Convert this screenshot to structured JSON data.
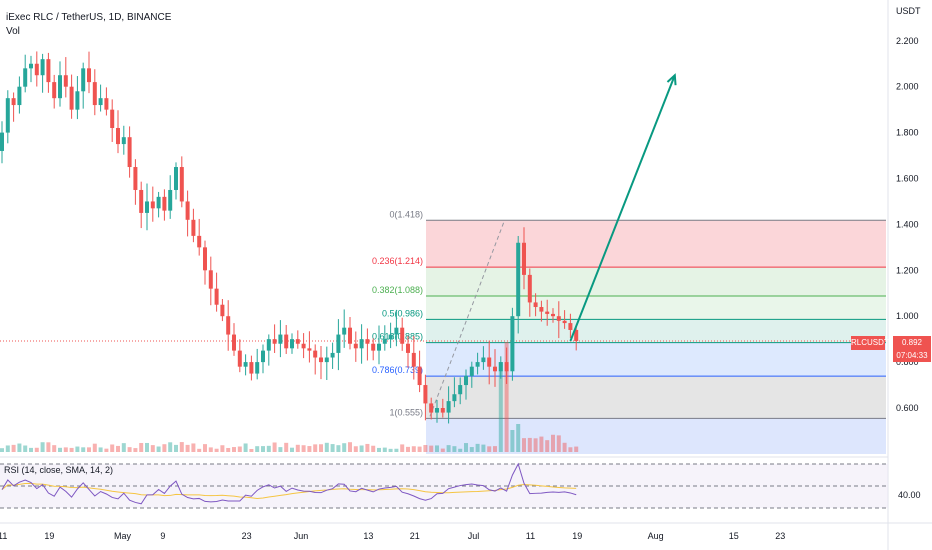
{
  "header": {
    "symbol_line": "iExec RLC / TetherUS, 1D, BINANCE",
    "vol_label": "Vol"
  },
  "axis": {
    "unit": "USDT",
    "price_ticks": [
      {
        "v": 2.2,
        "label": "2.200"
      },
      {
        "v": 2.0,
        "label": "2.000"
      },
      {
        "v": 1.8,
        "label": "1.800"
      },
      {
        "v": 1.6,
        "label": "1.600"
      },
      {
        "v": 1.4,
        "label": "1.400"
      },
      {
        "v": 1.2,
        "label": "1.200"
      },
      {
        "v": 1.0,
        "label": "1.000"
      },
      {
        "v": 0.8,
        "label": "0.800"
      },
      {
        "v": 0.6,
        "label": "0.600"
      }
    ],
    "date_ticks": [
      {
        "i": 0,
        "label": "11"
      },
      {
        "i": 8,
        "label": "19"
      },
      {
        "i": 20,
        "label": "May"
      },
      {
        "i": 28,
        "label": "9"
      },
      {
        "i": 42,
        "label": "23"
      },
      {
        "i": 51,
        "label": "Jun"
      },
      {
        "i": 63,
        "label": "13"
      },
      {
        "i": 71,
        "label": "21"
      },
      {
        "i": 81,
        "label": "Jul"
      },
      {
        "i": 91,
        "label": "11"
      },
      {
        "i": 99,
        "label": "19"
      },
      {
        "i": 112,
        "label": "Aug"
      },
      {
        "i": 126,
        "label": "15"
      },
      {
        "i": 134,
        "label": "23"
      }
    ]
  },
  "price_tag": {
    "symbol": "RLCUSDT",
    "price": "0.892",
    "countdown": "07:04:33"
  },
  "rsi": {
    "label": "RSI (14, close, SMA, 14, 2)",
    "tick_label": "40.00"
  },
  "fib_levels": [
    {
      "ratio": "0",
      "price": 1.418,
      "label": "0(1.418)",
      "color": "#787b86"
    },
    {
      "ratio": "0.236",
      "price": 1.214,
      "label": "0.236(1.214)",
      "color": "#f23645"
    },
    {
      "ratio": "0.382",
      "price": 1.088,
      "label": "0.382(1.088)",
      "color": "#4caf50"
    },
    {
      "ratio": "0.5",
      "price": 0.986,
      "label": "0.5(0.986)",
      "color": "#089981"
    },
    {
      "ratio": "0.618",
      "price": 0.885,
      "label": "0.618(0.885)",
      "color": "#089981"
    },
    {
      "ratio": "0.786",
      "price": 0.739,
      "label": "0.786(0.739)",
      "color": "#2962ff"
    },
    {
      "ratio": "1",
      "price": 0.555,
      "label": "1(0.555)",
      "color": "#787b86"
    }
  ],
  "chart_data": {
    "type": "candlestick",
    "symbol": "RLCUSDT",
    "current_price": 0.892,
    "ylim": [
      0.47,
      2.35
    ],
    "colors": {
      "up": "#26a69a",
      "down": "#ef5350",
      "arrow": "#089981",
      "rsi": "#7e57c2",
      "rsi_ma": "#f5c542"
    },
    "closes": [
      1.8,
      1.95,
      1.92,
      2.0,
      2.08,
      2.1,
      2.05,
      2.12,
      2.02,
      1.95,
      2.05,
      2.0,
      1.9,
      1.98,
      2.08,
      2.02,
      1.92,
      1.95,
      1.9,
      1.82,
      1.75,
      1.78,
      1.65,
      1.55,
      1.45,
      1.5,
      1.47,
      1.52,
      1.46,
      1.55,
      1.65,
      1.5,
      1.42,
      1.35,
      1.3,
      1.2,
      1.12,
      1.05,
      1.0,
      0.92,
      0.85,
      0.78,
      0.8,
      0.75,
      0.8,
      0.85,
      0.9,
      0.88,
      0.92,
      0.86,
      0.9,
      0.88,
      0.86,
      0.85,
      0.82,
      0.8,
      0.82,
      0.84,
      0.92,
      0.95,
      0.88,
      0.86,
      0.9,
      0.88,
      0.85,
      0.88,
      0.9,
      0.92,
      0.95,
      0.88,
      0.84,
      0.78,
      0.7,
      0.62,
      0.58,
      0.6,
      0.58,
      0.63,
      0.66,
      0.7,
      0.74,
      0.78,
      0.8,
      0.82,
      0.78,
      0.76,
      0.8,
      0.76,
      1.0,
      1.32,
      1.18,
      1.06,
      1.04,
      1.02,
      1.01,
      1.0,
      0.98,
      0.97,
      0.94,
      0.892
    ],
    "arrow": {
      "from_index": 98,
      "from_price": 0.892,
      "to_index": 116,
      "to_price": 2.05
    }
  }
}
